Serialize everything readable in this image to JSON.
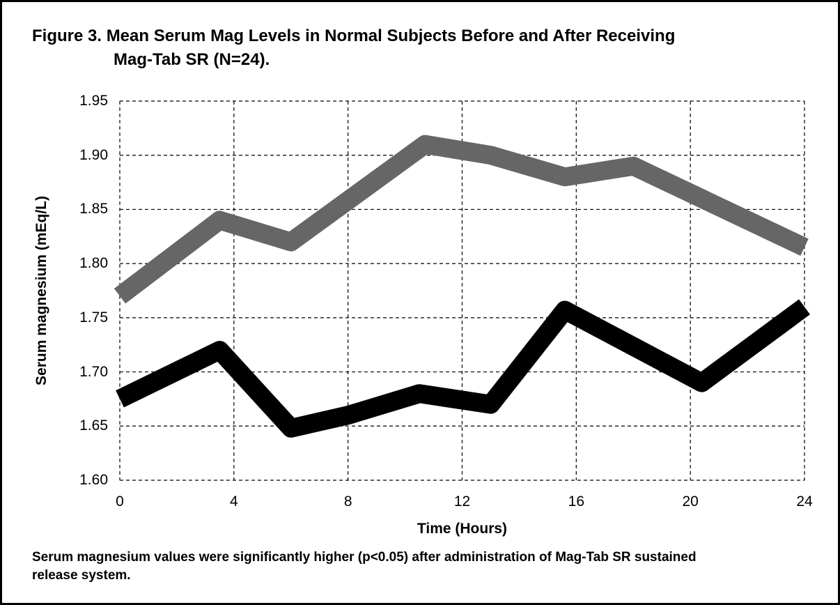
{
  "title": {
    "line1": "Figure 3. Mean Serum Mag Levels in Normal Subjects Before and After Receiving",
    "line2": "Mag-Tab SR (N=24)."
  },
  "footer": {
    "line1": "Serum magnesium values were significantly higher (p<0.05) after administration of Mag-Tab SR sustained",
    "line2": "release system."
  },
  "chart_data": {
    "type": "line",
    "title": "Figure 3. Mean Serum Mag Levels in Normal Subjects Before and After Receiving Mag-Tab SR (N=24).",
    "xlabel": "Time (Hours)",
    "ylabel": "Serum magnesium (mEq/L)",
    "xlim": [
      0,
      24
    ],
    "ylim": [
      1.6,
      1.95
    ],
    "x_ticks": [
      0,
      4,
      8,
      12,
      16,
      20,
      24
    ],
    "y_ticks": [
      1.6,
      1.65,
      1.7,
      1.75,
      1.8,
      1.85,
      1.9,
      1.95
    ],
    "grid": "dashed-both",
    "legend_position": "none",
    "series": [
      {
        "name": "gray",
        "color": "#666666",
        "x": [
          0,
          3.5,
          6,
          10.7,
          13,
          15.6,
          18,
          24
        ],
        "y": [
          1.77,
          1.84,
          1.82,
          1.91,
          1.9,
          1.88,
          1.89,
          1.815
        ]
      },
      {
        "name": "black",
        "color": "#000000",
        "x": [
          0,
          3.5,
          6,
          8,
          10.5,
          13,
          15.6,
          20.4,
          24
        ],
        "y": [
          1.675,
          1.72,
          1.648,
          1.66,
          1.68,
          1.67,
          1.757,
          1.69,
          1.76
        ]
      }
    ]
  }
}
